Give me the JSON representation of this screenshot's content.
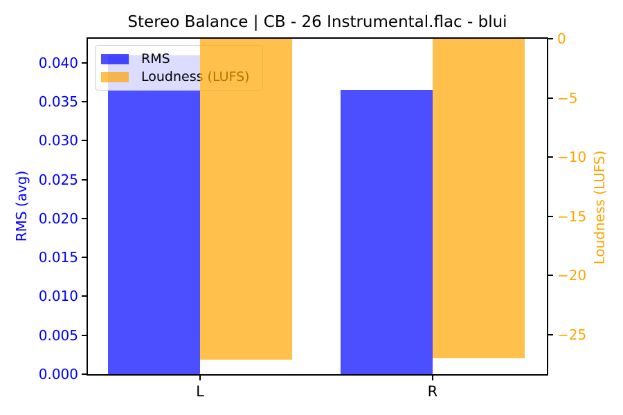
{
  "figure": {
    "background": "#ffffff",
    "spine_color": "#000000"
  },
  "chart_data": {
    "type": "bar",
    "title": "Stereo Balance | CB - 26 Instrumental.flac - blui",
    "categories": [
      "L",
      "R"
    ],
    "series": [
      {
        "name": "RMS",
        "axis": "left",
        "color": "#0000ff",
        "fill_rgba": "rgba(0,4,255,0.7)",
        "values": [
          0.041,
          0.0365
        ]
      },
      {
        "name": "Loudness (LUFS)",
        "axis": "right",
        "color": "#ffa500",
        "fill_rgba": "rgba(255,165,0,0.7)",
        "values": [
          -27.1,
          -27.0
        ]
      }
    ],
    "left_axis": {
      "label": "RMS (avg)",
      "color": "#0000ff",
      "range": [
        0,
        0.0431
      ],
      "ticks": [
        {
          "label": "0.000",
          "value": 0.0
        },
        {
          "label": "0.005",
          "value": 0.005
        },
        {
          "label": "0.010",
          "value": 0.01
        },
        {
          "label": "0.015",
          "value": 0.015
        },
        {
          "label": "0.020",
          "value": 0.02
        },
        {
          "label": "0.025",
          "value": 0.025
        },
        {
          "label": "0.030",
          "value": 0.03
        },
        {
          "label": "0.035",
          "value": 0.035
        },
        {
          "label": "0.040",
          "value": 0.04
        }
      ]
    },
    "right_axis": {
      "label": "Loudness (LUFS)",
      "color": "#ffa500",
      "range": [
        -28.35,
        0
      ],
      "ticks": [
        {
          "label": "0",
          "value": 0
        },
        {
          "label": "−5",
          "value": -5
        },
        {
          "label": "−10",
          "value": -10
        },
        {
          "label": "−15",
          "value": -15
        },
        {
          "label": "−20",
          "value": -20
        },
        {
          "label": "−25",
          "value": -25
        }
      ]
    },
    "legend": {
      "position": "upper-left",
      "entries": [
        {
          "label": "RMS",
          "fill_rgba": "rgba(0,4,255,0.7)"
        },
        {
          "label": "Loudness (LUFS)",
          "fill_rgba": "rgba(255,165,0,0.7)"
        }
      ]
    },
    "grid": false
  }
}
